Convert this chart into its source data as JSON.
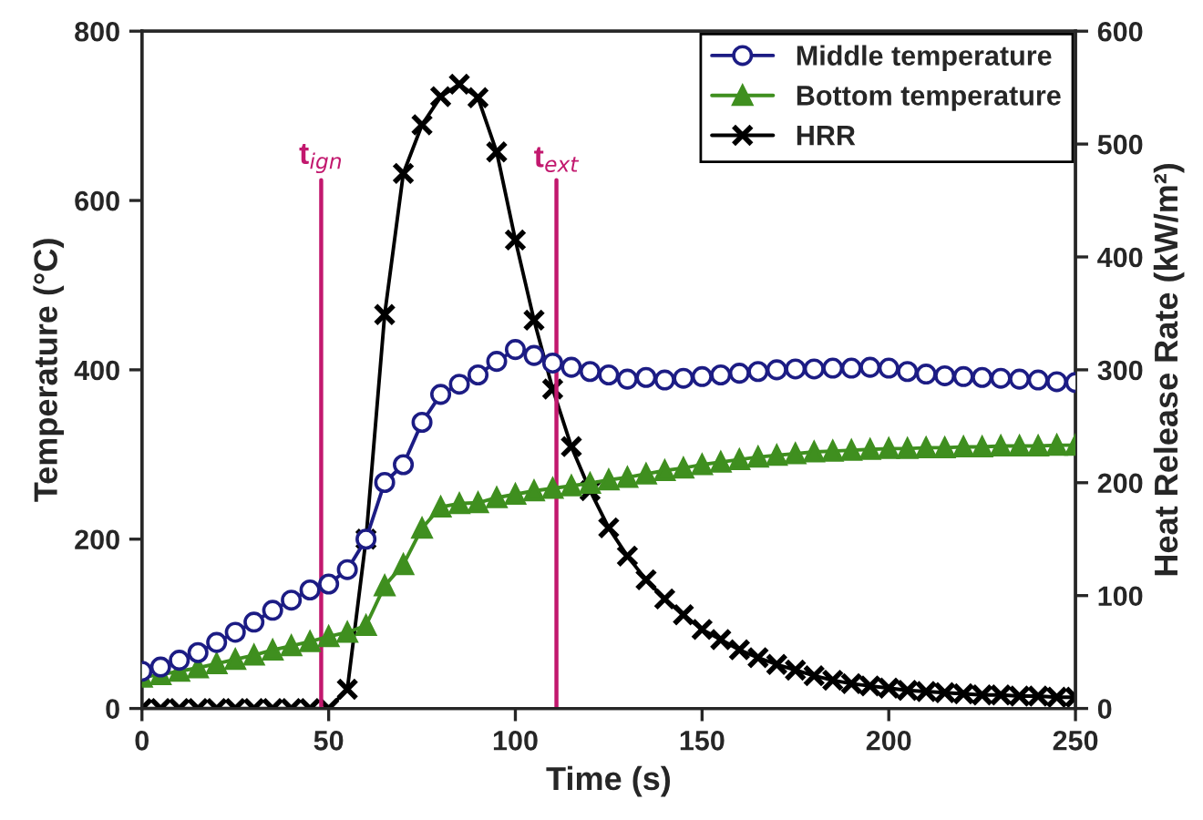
{
  "chart_data": {
    "type": "line",
    "xlabel": "Time (s)",
    "ylabel": "Temperature (°C)",
    "y2label": "Heat Release Rate (kW/m²)",
    "x": [
      0,
      5,
      10,
      15,
      20,
      25,
      30,
      35,
      40,
      45,
      50,
      55,
      60,
      65,
      70,
      75,
      80,
      85,
      90,
      95,
      100,
      105,
      110,
      115,
      120,
      125,
      130,
      135,
      140,
      145,
      150,
      155,
      160,
      165,
      170,
      175,
      180,
      185,
      190,
      195,
      200,
      205,
      210,
      215,
      220,
      225,
      230,
      235,
      240,
      245,
      250
    ],
    "series": [
      {
        "name": "Middle temperature",
        "color": "#1c1c84",
        "marker": "circle",
        "values": [
          44,
          49,
          57,
          66,
          78,
          90,
          102,
          116,
          128,
          140,
          147,
          164,
          200,
          267,
          288,
          338,
          371,
          383,
          394,
          410,
          424,
          417,
          408,
          403,
          398,
          394,
          389,
          391,
          388,
          390,
          392,
          394,
          396,
          398,
          400,
          401,
          401,
          402,
          402,
          403,
          402,
          398,
          395,
          393,
          392,
          391,
          390,
          389,
          388,
          386,
          385
        ]
      },
      {
        "name": "Bottom temperature",
        "color": "#3f8f1f",
        "marker": "triangle",
        "values": [
          37,
          40,
          44,
          48,
          53,
          58,
          63,
          69,
          74,
          79,
          85,
          90,
          98,
          145,
          170,
          213,
          238,
          242,
          243,
          249,
          253,
          257,
          260,
          263,
          266,
          270,
          273,
          277,
          281,
          284,
          288,
          291,
          294,
          297,
          299,
          301,
          303,
          304,
          305,
          306,
          307,
          307,
          308,
          308,
          309,
          309,
          310,
          310,
          310,
          311,
          311
        ]
      },
      {
        "name": "HRR",
        "color": "#000000",
        "marker": "cross",
        "axis": "y2",
        "values": [
          0,
          0,
          0,
          0,
          0,
          0,
          0,
          0,
          0,
          0,
          0,
          17,
          150,
          349,
          474,
          517,
          542,
          553,
          541,
          493,
          415,
          344,
          283,
          232,
          193,
          160,
          135,
          114,
          97,
          83,
          70,
          61,
          52,
          45,
          39,
          34,
          29,
          25,
          22,
          20,
          18,
          16,
          15,
          14,
          13,
          12,
          12,
          11,
          11,
          10,
          10
        ]
      }
    ],
    "xlim": [
      0,
      250
    ],
    "xticks": [
      0,
      50,
      100,
      150,
      200,
      250
    ],
    "ylim": [
      0,
      800
    ],
    "yticks": [
      0,
      200,
      400,
      600,
      800
    ],
    "y2lim": [
      0,
      600
    ],
    "y2ticks": [
      0,
      100,
      200,
      300,
      400,
      500,
      600
    ],
    "ref_lines": [
      {
        "axis": "x",
        "value": 48,
        "label": "t$_{ign}$",
        "color": "#c2186e"
      },
      {
        "axis": "x",
        "value": 111,
        "label": "t$_{ext}$",
        "color": "#c2186e"
      }
    ],
    "legend": "top right",
    "grid": false,
    "line_style": "solid"
  }
}
